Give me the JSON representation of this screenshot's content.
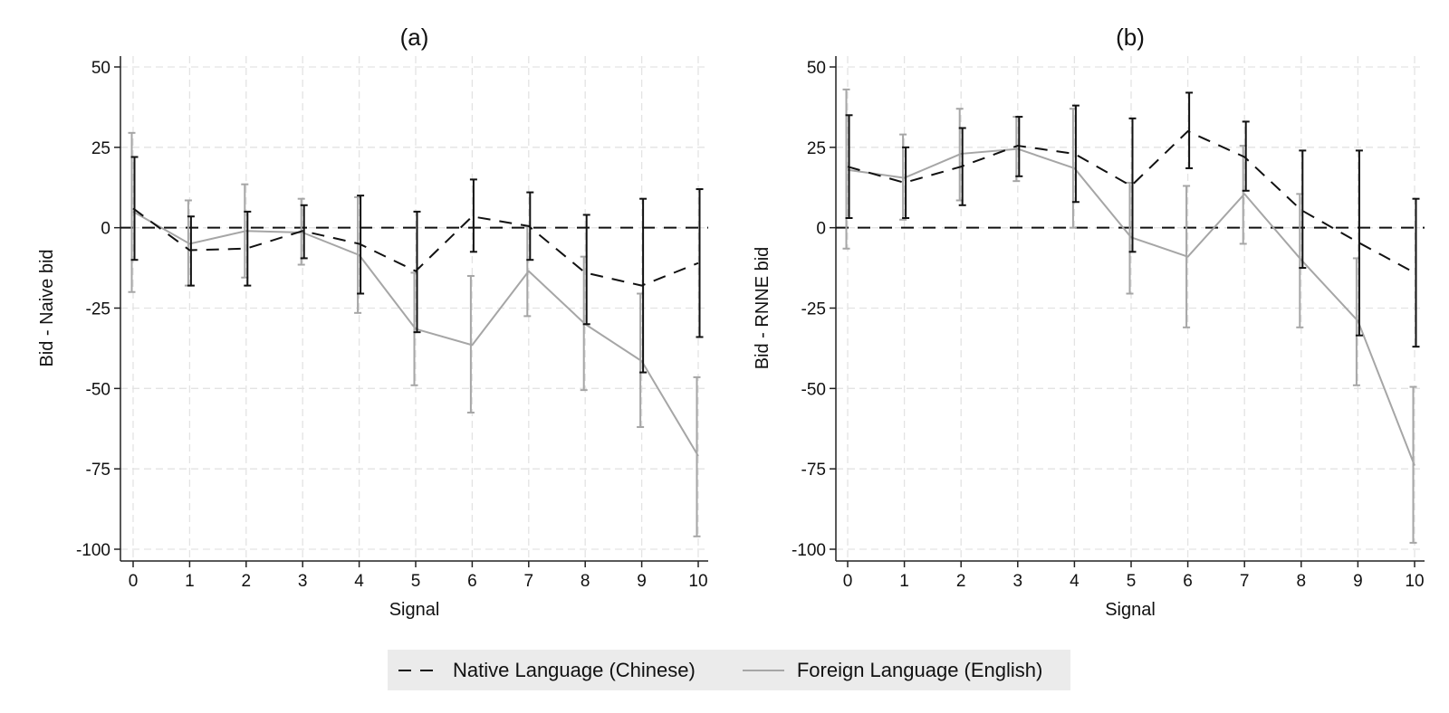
{
  "chart_data": [
    {
      "type": "line",
      "title": "(a)",
      "xlabel": "Signal",
      "ylabel": "Bid - Naive bid",
      "x": [
        0,
        1,
        2,
        3,
        4,
        5,
        6,
        7,
        8,
        9,
        10
      ],
      "xlim": [
        0,
        10
      ],
      "ylim": [
        -100,
        50
      ],
      "yticks": [
        50,
        25,
        0,
        -25,
        -50,
        -75,
        -100
      ],
      "reference_line": 0,
      "grid": true,
      "series": [
        {
          "name": "Native Language (Chinese)",
          "style": "dashed",
          "color": "#111111",
          "values": [
            6,
            -7,
            -6.5,
            -1,
            -5,
            -13.5,
            3.5,
            0.5,
            -14,
            -18,
            -11
          ],
          "ci_low": [
            -10,
            -18,
            -18,
            -9.5,
            -20.5,
            -32.5,
            -7.5,
            -10,
            -30,
            -45,
            -34
          ],
          "ci_high": [
            22,
            3.5,
            5,
            7,
            10,
            5,
            15,
            11,
            4,
            9,
            12
          ]
        },
        {
          "name": "Foreign Language (English)",
          "style": "solid",
          "color": "#a6a6a6",
          "values": [
            5,
            -5,
            -1,
            -1.5,
            -8.5,
            -31.5,
            -36.5,
            -13.5,
            -30,
            -41.5,
            -71
          ],
          "ci_low": [
            -20,
            -18,
            -15.5,
            -11.5,
            -26.5,
            -49,
            -57.5,
            -27.5,
            -50.5,
            -62,
            -96
          ],
          "ci_high": [
            29.5,
            8.5,
            13.5,
            9,
            9.5,
            -14,
            -15,
            0.5,
            -9,
            -20.5,
            -46.5
          ]
        }
      ]
    },
    {
      "type": "line",
      "title": "(b)",
      "xlabel": "Signal",
      "ylabel": "Bid - RNNE bid",
      "x": [
        0,
        1,
        2,
        3,
        4,
        5,
        6,
        7,
        8,
        9,
        10
      ],
      "xlim": [
        0,
        10
      ],
      "ylim": [
        -100,
        50
      ],
      "yticks": [
        50,
        25,
        0,
        -25,
        -50,
        -75,
        -100
      ],
      "reference_line": 0,
      "grid": true,
      "series": [
        {
          "name": "Native Language (Chinese)",
          "style": "dashed",
          "color": "#111111",
          "values": [
            19,
            14,
            19,
            25.5,
            23,
            13,
            30,
            22,
            5.5,
            -4.5,
            -14
          ],
          "ci_low": [
            3,
            3,
            7,
            16,
            8,
            -7.5,
            18.5,
            11.5,
            -12.5,
            -33.5,
            -37
          ],
          "ci_high": [
            35,
            25,
            31,
            34.5,
            38,
            34,
            42,
            33,
            24,
            24,
            9
          ]
        },
        {
          "name": "Foreign Language (English)",
          "style": "solid",
          "color": "#a6a6a6",
          "values": [
            18,
            15.5,
            23,
            24.5,
            18.5,
            -3,
            -9,
            10.5,
            -10,
            -29,
            -74
          ],
          "ci_low": [
            -6.5,
            2.5,
            8.5,
            14.5,
            0,
            -20.5,
            -31,
            -5,
            -31,
            -49,
            -98
          ],
          "ci_high": [
            43,
            29,
            37,
            34.5,
            37,
            14,
            13,
            25.5,
            10.5,
            -9.5,
            -49.5
          ]
        }
      ]
    }
  ],
  "legend": {
    "items": [
      {
        "label": "Native Language (Chinese)"
      },
      {
        "label": "Foreign Language (English)"
      }
    ],
    "position": "bottom"
  }
}
